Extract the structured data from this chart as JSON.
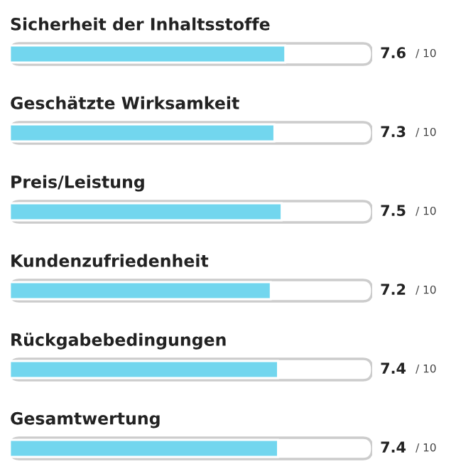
{
  "chart_data": {
    "type": "bar",
    "orientation": "horizontal",
    "categories": [
      "Sicherheit der Inhaltsstoffe",
      "Geschätzte Wirksamkeit",
      "Preis/Leistung",
      "Kundenzufriedenheit",
      "Rückgabebedingungen",
      "Gesamtwertung"
    ],
    "values": [
      7.6,
      7.3,
      7.5,
      7.2,
      7.4,
      7.4
    ],
    "data_labels": true,
    "annotations": [
      "/ 10",
      "/ 10",
      "/ 10",
      "/ 10",
      "/ 10",
      "/ 10"
    ],
    "color": "#72d6ee",
    "xlim": [
      0,
      10
    ]
  }
}
